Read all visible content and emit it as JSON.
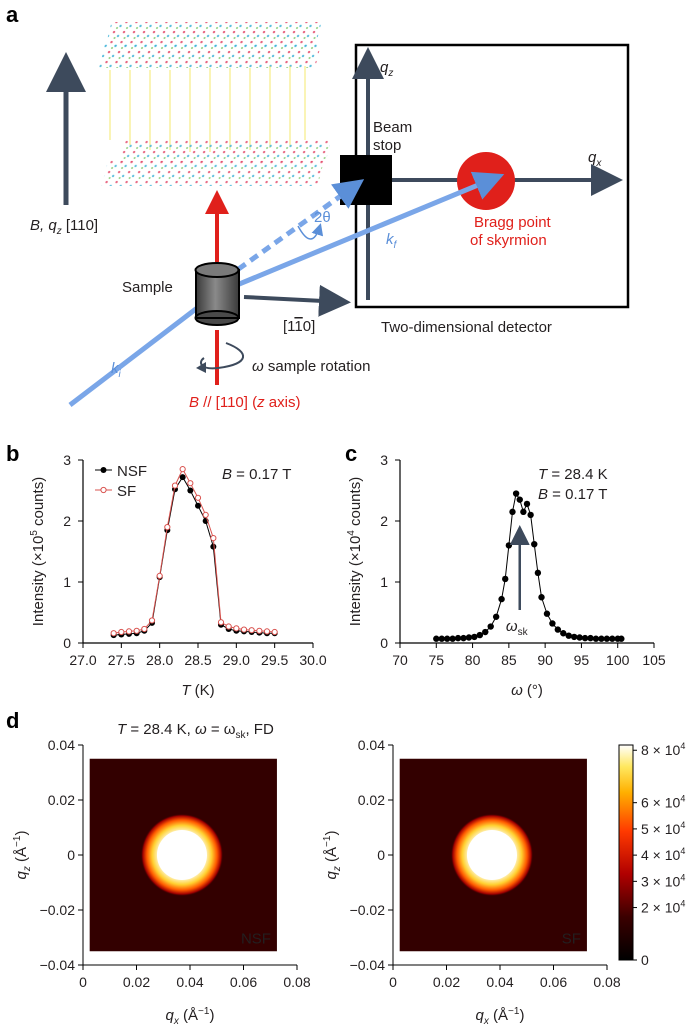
{
  "panels": {
    "a": "a",
    "b": "b",
    "c": "c",
    "d": "d"
  },
  "schematic": {
    "qz_axis": "q",
    "qz_sub": "z",
    "qx_axis": "q",
    "qx_sub": "x",
    "beam_stop_1": "Beam",
    "beam_stop_2": "stop",
    "two_theta": "2θ",
    "kf": "k",
    "kf_sub": "f",
    "ki": "k",
    "ki_sub": "i",
    "bragg_1": "Bragg point",
    "bragg_2": "of skyrmion",
    "b_qz_label": "B, q",
    "b_qz_sub": "z",
    "b_qz_dir": " [110]",
    "sample": "Sample",
    "direction": "[1",
    "direction_bar": "1",
    "direction_end": "0]",
    "detector": "Two-dimensional detector",
    "rotation_omega": "ω",
    "rotation": " sample rotation",
    "field_b": "B",
    "field_mid": " // [110] (",
    "field_z": "z",
    "field_end": " axis)"
  },
  "colors": {
    "beam": "#5b8fd8",
    "field": "#e0201b",
    "axis": "#3d4a5c",
    "nsf": "#000000",
    "sf": "#d9534f"
  },
  "chart_data": [
    {
      "type": "scatter",
      "panel": "b",
      "xlabel_var": "T",
      "xlabel_unit": " (K)",
      "ylabel": "Intensity (×10",
      "ylabel_exp": "5",
      "ylabel_end": " counts)",
      "annotation_var": "B",
      "annotation_val": " = 0.17 T",
      "xlim": [
        27.0,
        30.0
      ],
      "ylim": [
        0,
        3
      ],
      "xticks": [
        "27.0",
        "27.5",
        "28.0",
        "28.5",
        "29.0",
        "29.5",
        "30.0"
      ],
      "yticks": [
        "0",
        "1",
        "2",
        "3"
      ],
      "legend": "top-left",
      "series": [
        {
          "name": "NSF",
          "marker": "filled",
          "x": [
            27.4,
            27.5,
            27.6,
            27.7,
            27.8,
            27.9,
            28.0,
            28.1,
            28.2,
            28.3,
            28.4,
            28.5,
            28.6,
            28.7,
            28.8,
            28.9,
            29.0,
            29.1,
            29.2,
            29.3,
            29.4,
            29.5
          ],
          "y": [
            0.13,
            0.14,
            0.15,
            0.16,
            0.2,
            0.33,
            1.08,
            1.85,
            2.52,
            2.72,
            2.5,
            2.25,
            2.0,
            1.58,
            0.3,
            0.23,
            0.2,
            0.19,
            0.18,
            0.17,
            0.16,
            0.16
          ]
        },
        {
          "name": "SF",
          "marker": "open",
          "x": [
            27.4,
            27.5,
            27.6,
            27.7,
            27.8,
            27.9,
            28.0,
            28.1,
            28.2,
            28.3,
            28.4,
            28.5,
            28.6,
            28.7,
            28.8,
            28.9,
            29.0,
            29.1,
            29.2,
            29.3,
            29.4,
            29.5
          ],
          "y": [
            0.16,
            0.18,
            0.19,
            0.2,
            0.23,
            0.37,
            1.1,
            1.9,
            2.58,
            2.85,
            2.62,
            2.38,
            2.1,
            1.72,
            0.34,
            0.27,
            0.24,
            0.22,
            0.21,
            0.2,
            0.19,
            0.18
          ]
        }
      ]
    },
    {
      "type": "scatter",
      "panel": "c",
      "xlabel_var": "ω",
      "xlabel_unit": " (°)",
      "ylabel": "Intensity (×10",
      "ylabel_exp": "4",
      "ylabel_end": " counts)",
      "annotation_t_var": "T",
      "annotation_t_val": " = 28.4 K",
      "annotation_b_var": "B",
      "annotation_b_val": " = 0.17 T",
      "arrow_label": "ω",
      "arrow_sub": "sk",
      "arrow_x": 86.5,
      "xlim": [
        70,
        105
      ],
      "ylim": [
        0,
        3
      ],
      "xticks": [
        "70",
        "75",
        "80",
        "85",
        "90",
        "95",
        "100",
        "105"
      ],
      "yticks": [
        "0",
        "1",
        "2",
        "3"
      ],
      "series": [
        {
          "name": "",
          "x": [
            75,
            75.75,
            76.5,
            77.25,
            78,
            78.75,
            79.5,
            80.25,
            81,
            81.75,
            82.5,
            83.25,
            84,
            84.5,
            85,
            85.5,
            86,
            86.5,
            87,
            87.5,
            88,
            88.5,
            89,
            89.5,
            90.25,
            91,
            91.75,
            92.5,
            93.25,
            94,
            94.75,
            95.5,
            96.25,
            97,
            97.75,
            98.5,
            99.25,
            100,
            100.5
          ],
          "y": [
            0.07,
            0.07,
            0.07,
            0.07,
            0.08,
            0.08,
            0.09,
            0.1,
            0.13,
            0.18,
            0.27,
            0.43,
            0.72,
            1.05,
            1.6,
            2.15,
            2.45,
            2.35,
            2.15,
            2.28,
            2.1,
            1.62,
            1.15,
            0.75,
            0.48,
            0.32,
            0.22,
            0.16,
            0.12,
            0.1,
            0.09,
            0.08,
            0.08,
            0.07,
            0.07,
            0.07,
            0.07,
            0.07,
            0.07
          ]
        }
      ]
    },
    {
      "type": "heatmap",
      "panel": "d",
      "title_t": "T",
      "title_mid": " = 28.4 K, ",
      "title_w": "ω",
      "title_eq": " = ω",
      "title_sub": "sk",
      "title_end": ", FD",
      "maps": [
        {
          "label": "NSF",
          "center": [
            0.037,
            0.0
          ],
          "radius": 0.0085
        },
        {
          "label": "SF",
          "center": [
            0.037,
            0.0
          ],
          "radius": 0.0085
        }
      ],
      "xlabel": "q",
      "xlabel_sub": "x",
      "xlabel_unit": " (Å",
      "ylabel": "q",
      "ylabel_sub": "z",
      "ylabel_unit": " (Å",
      "unit_exp": "−1",
      "unit_close": ")",
      "xlim": [
        0,
        0.08
      ],
      "ylim": [
        -0.04,
        0.04
      ],
      "xticks": [
        "0",
        "0.02",
        "0.04",
        "0.06",
        "0.08"
      ],
      "yticks": [
        "0.04",
        "0.02",
        "0",
        "−0.02",
        "−0.04"
      ],
      "colorbar": {
        "min": 0,
        "max": 82000,
        "ticks": [
          {
            "value": 0,
            "mant": "0",
            "exp": ""
          },
          {
            "value": 20000,
            "mant": "2 × 10",
            "exp": "4"
          },
          {
            "value": 30000,
            "mant": "3 × 10",
            "exp": "4"
          },
          {
            "value": 40000,
            "mant": "4 × 10",
            "exp": "4"
          },
          {
            "value": 50000,
            "mant": "5 × 10",
            "exp": "4"
          },
          {
            "value": 60000,
            "mant": "6 × 10",
            "exp": "4"
          },
          {
            "value": 80000,
            "mant": "8 × 10",
            "exp": "4"
          }
        ]
      }
    }
  ]
}
